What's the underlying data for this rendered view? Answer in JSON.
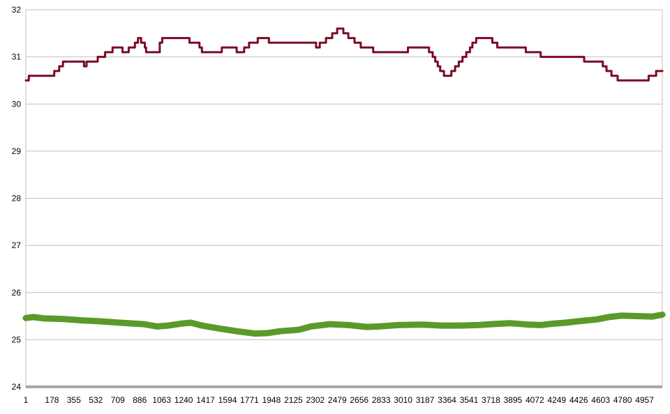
{
  "chart_data": {
    "type": "line",
    "title": "",
    "xlabel": "",
    "ylabel": "",
    "ylim": [
      24,
      32
    ],
    "y_ticks": [
      "24",
      "25",
      "26",
      "27",
      "28",
      "29",
      "30",
      "31",
      "32"
    ],
    "x_ticks": [
      "1",
      "178",
      "355",
      "532",
      "709",
      "886",
      "1063",
      "1240",
      "1417",
      "1594",
      "1771",
      "1948",
      "2125",
      "2302",
      "2479",
      "2656",
      "2833",
      "3010",
      "3187",
      "3364",
      "3541",
      "3718",
      "3895",
      "4072",
      "4249",
      "4426",
      "4603",
      "4780",
      "4957"
    ],
    "xlim": [
      1,
      5130
    ],
    "grid": true,
    "legend": "none",
    "series": [
      {
        "color": "#7b0a24",
        "step": true,
        "points": [
          [
            1,
            30.5
          ],
          [
            25,
            30.6
          ],
          [
            200,
            30.6
          ],
          [
            230,
            30.7
          ],
          [
            270,
            30.8
          ],
          [
            300,
            30.9
          ],
          [
            450,
            30.9
          ],
          [
            470,
            30.8
          ],
          [
            490,
            30.9
          ],
          [
            560,
            30.9
          ],
          [
            580,
            31.0
          ],
          [
            620,
            31.0
          ],
          [
            640,
            31.1
          ],
          [
            680,
            31.1
          ],
          [
            700,
            31.2
          ],
          [
            760,
            31.2
          ],
          [
            780,
            31.1
          ],
          [
            830,
            31.2
          ],
          [
            880,
            31.3
          ],
          [
            905,
            31.4
          ],
          [
            930,
            31.3
          ],
          [
            960,
            31.2
          ],
          [
            970,
            31.1
          ],
          [
            1060,
            31.1
          ],
          [
            1080,
            31.3
          ],
          [
            1100,
            31.4
          ],
          [
            1300,
            31.4
          ],
          [
            1320,
            31.3
          ],
          [
            1380,
            31.3
          ],
          [
            1400,
            31.2
          ],
          [
            1420,
            31.1
          ],
          [
            1550,
            31.1
          ],
          [
            1580,
            31.2
          ],
          [
            1650,
            31.2
          ],
          [
            1700,
            31.1
          ],
          [
            1760,
            31.2
          ],
          [
            1800,
            31.3
          ],
          [
            1870,
            31.4
          ],
          [
            1940,
            31.4
          ],
          [
            1960,
            31.3
          ],
          [
            2300,
            31.3
          ],
          [
            2340,
            31.2
          ],
          [
            2370,
            31.3
          ],
          [
            2420,
            31.4
          ],
          [
            2470,
            31.5
          ],
          [
            2510,
            31.6
          ],
          [
            2560,
            31.5
          ],
          [
            2600,
            31.4
          ],
          [
            2650,
            31.3
          ],
          [
            2700,
            31.2
          ],
          [
            2800,
            31.1
          ],
          [
            3050,
            31.1
          ],
          [
            3080,
            31.2
          ],
          [
            3220,
            31.2
          ],
          [
            3250,
            31.1
          ],
          [
            3280,
            31.0
          ],
          [
            3300,
            30.9
          ],
          [
            3320,
            30.8
          ],
          [
            3340,
            30.7
          ],
          [
            3370,
            30.6
          ],
          [
            3430,
            30.7
          ],
          [
            3460,
            30.8
          ],
          [
            3490,
            30.9
          ],
          [
            3520,
            31.0
          ],
          [
            3550,
            31.1
          ],
          [
            3580,
            31.2
          ],
          [
            3600,
            31.3
          ],
          [
            3630,
            31.4
          ],
          [
            3760,
            31.3
          ],
          [
            3800,
            31.2
          ],
          [
            4000,
            31.2
          ],
          [
            4030,
            31.1
          ],
          [
            4100,
            31.1
          ],
          [
            4150,
            31.0
          ],
          [
            4470,
            31.0
          ],
          [
            4500,
            30.9
          ],
          [
            4630,
            30.9
          ],
          [
            4650,
            30.8
          ],
          [
            4680,
            30.7
          ],
          [
            4720,
            30.6
          ],
          [
            4770,
            30.5
          ],
          [
            5000,
            30.5
          ],
          [
            5020,
            30.6
          ],
          [
            5080,
            30.7
          ],
          [
            5130,
            30.7
          ]
        ]
      },
      {
        "color": "#5b9a2a",
        "step": false,
        "points": [
          [
            1,
            25.46
          ],
          [
            60,
            25.48
          ],
          [
            150,
            25.45
          ],
          [
            300,
            25.44
          ],
          [
            450,
            25.41
          ],
          [
            600,
            25.39
          ],
          [
            760,
            25.36
          ],
          [
            950,
            25.33
          ],
          [
            1060,
            25.28
          ],
          [
            1150,
            25.3
          ],
          [
            1250,
            25.34
          ],
          [
            1330,
            25.36
          ],
          [
            1420,
            25.3
          ],
          [
            1550,
            25.24
          ],
          [
            1700,
            25.18
          ],
          [
            1850,
            25.13
          ],
          [
            1950,
            25.14
          ],
          [
            2050,
            25.18
          ],
          [
            2200,
            25.21
          ],
          [
            2300,
            25.28
          ],
          [
            2450,
            25.33
          ],
          [
            2600,
            25.31
          ],
          [
            2750,
            25.27
          ],
          [
            2850,
            25.28
          ],
          [
            3000,
            25.31
          ],
          [
            3200,
            25.32
          ],
          [
            3350,
            25.3
          ],
          [
            3500,
            25.3
          ],
          [
            3650,
            25.31
          ],
          [
            3750,
            25.33
          ],
          [
            3900,
            25.35
          ],
          [
            4050,
            25.32
          ],
          [
            4150,
            25.31
          ],
          [
            4250,
            25.34
          ],
          [
            4350,
            25.36
          ],
          [
            4450,
            25.39
          ],
          [
            4600,
            25.43
          ],
          [
            4700,
            25.48
          ],
          [
            4800,
            25.51
          ],
          [
            4950,
            25.5
          ],
          [
            5050,
            25.49
          ],
          [
            5130,
            25.53
          ]
        ]
      }
    ]
  }
}
